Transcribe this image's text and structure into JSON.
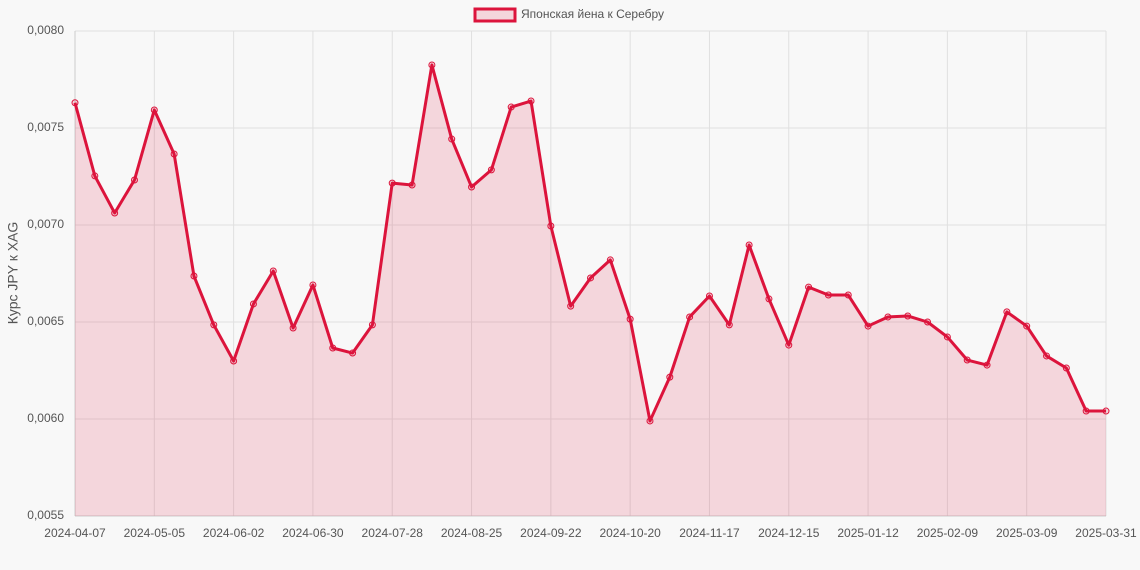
{
  "chart_data": {
    "type": "line",
    "legend": "top",
    "ylabel": "Курс JPY к XAG",
    "categories": [
      "2024-04-07",
      null,
      null,
      null,
      "2024-05-05",
      null,
      null,
      null,
      "2024-06-02",
      null,
      null,
      null,
      "2024-06-30",
      null,
      null,
      null,
      "2024-07-28",
      null,
      null,
      null,
      "2024-08-25",
      null,
      null,
      null,
      "2024-09-22",
      null,
      null,
      null,
      "2024-10-20",
      null,
      null,
      null,
      "2024-11-17",
      null,
      null,
      null,
      "2024-12-15",
      null,
      null,
      null,
      "2025-01-12",
      null,
      null,
      null,
      "2025-02-09",
      null,
      null,
      null,
      "2025-03-09",
      null,
      null,
      null,
      "2025-03-31"
    ],
    "series": [
      {
        "name": "Японская йена к Серебру",
        "color": "#dc143c",
        "fill": "rgba(220,20,60,0.15)",
        "values": [
          0.00763,
          0.007253,
          0.007062,
          0.007232,
          0.007593,
          0.007366,
          0.006737,
          0.006485,
          0.006299,
          0.006593,
          0.006763,
          0.006469,
          0.006691,
          0.006366,
          0.00634,
          0.006485,
          0.007216,
          0.007206,
          0.007825,
          0.007443,
          0.007196,
          0.007284,
          0.007608,
          0.007639,
          0.006995,
          0.006582,
          0.006727,
          0.00682,
          0.006515,
          0.00599,
          0.006216,
          0.006526,
          0.006634,
          0.006485,
          0.006897,
          0.006619,
          0.006381,
          0.00668,
          0.006639,
          0.006639,
          0.006479,
          0.006526,
          0.006531,
          0.0065,
          0.006423,
          0.006304,
          0.006278,
          0.006552,
          0.006479,
          0.006325,
          0.006263,
          0.006041,
          0.006041
        ]
      }
    ],
    "ylim": [
      0.0055,
      0.008
    ],
    "yticks": [
      {
        "value": 0.0055,
        "label": "0,0055"
      },
      {
        "value": 0.006,
        "label": "0,0060"
      },
      {
        "value": 0.0065,
        "label": "0,0065"
      },
      {
        "value": 0.007,
        "label": "0,0070"
      },
      {
        "value": 0.0075,
        "label": "0,0075"
      },
      {
        "value": 0.008,
        "label": "0,0080"
      }
    ],
    "grid": true
  }
}
